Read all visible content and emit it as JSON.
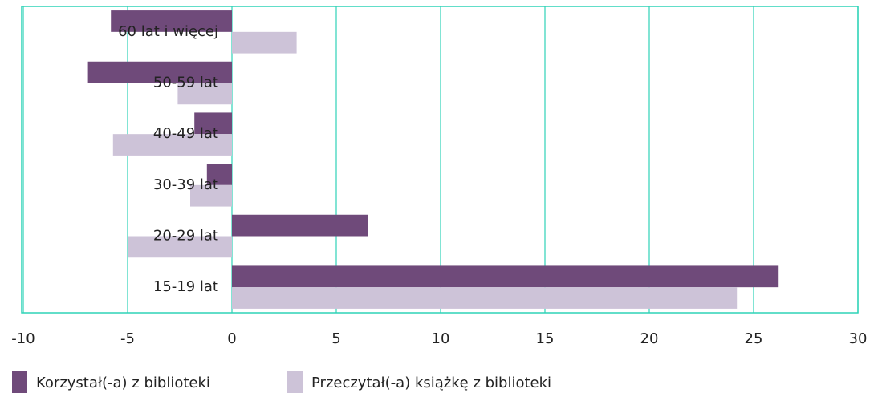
{
  "chart_data": {
    "type": "hbar",
    "categories": [
      "60 lat i więcej",
      "50-59 lat",
      "40-49 lat",
      "30-39 lat",
      "20-29 lat",
      "15-19 lat"
    ],
    "series": [
      {
        "name": "Korzystał(-a) z biblioteki",
        "color": "#6f4a7a",
        "values": [
          -5.8,
          -6.9,
          -1.8,
          -1.2,
          6.5,
          26.2
        ]
      },
      {
        "name": "Przeczytał(-a) książkę z biblioteki",
        "color": "#cdc3d8",
        "values": [
          3.1,
          -2.6,
          -5.7,
          -2.0,
          -5.0,
          24.2
        ]
      }
    ],
    "xlim": [
      -10,
      30
    ],
    "xticks": [
      -10,
      -5,
      0,
      5,
      10,
      15,
      20,
      25,
      30
    ],
    "grid": true,
    "grid_color": "#2ed3b7",
    "legend": "bottom"
  }
}
